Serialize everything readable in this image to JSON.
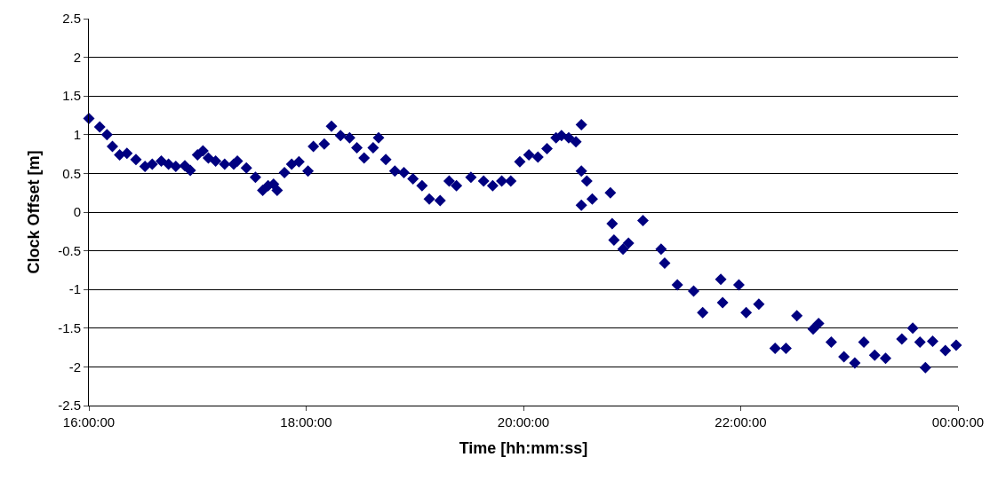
{
  "chart_data": {
    "type": "scatter",
    "xlabel": "Time [hh:mm:ss]",
    "ylabel": "Clock Offset [m]",
    "x": [
      "2000-01-01T16:00",
      "2000-01-01T16:06",
      "2000-01-01T16:10",
      "2000-01-01T16:13",
      "2000-01-01T16:17",
      "2000-01-01T16:21",
      "2000-01-01T16:26",
      "2000-01-01T16:31",
      "2000-01-01T16:35",
      "2000-01-01T16:40",
      "2000-01-01T16:44",
      "2000-01-01T16:48",
      "2000-01-01T16:53",
      "2000-01-01T16:56",
      "2000-01-01T17:00",
      "2000-01-01T17:03",
      "2000-01-01T17:06",
      "2000-01-01T17:10",
      "2000-01-01T17:15",
      "2000-01-01T17:20",
      "2000-01-01T17:22",
      "2000-01-01T17:27",
      "2000-01-01T17:32",
      "2000-01-01T17:36",
      "2000-01-01T17:39",
      "2000-01-01T17:42",
      "2000-01-01T17:44",
      "2000-01-01T17:48",
      "2000-01-01T17:52",
      "2000-01-01T17:56",
      "2000-01-01T18:01",
      "2000-01-01T18:04",
      "2000-01-01T18:10",
      "2000-01-01T18:14",
      "2000-01-01T18:19",
      "2000-01-01T18:24",
      "2000-01-01T18:28",
      "2000-01-01T18:32",
      "2000-01-01T18:37",
      "2000-01-01T18:40",
      "2000-01-01T18:44",
      "2000-01-01T18:49",
      "2000-01-01T18:54",
      "2000-01-01T18:59",
      "2000-01-01T19:04",
      "2000-01-01T19:08",
      "2000-01-01T19:14",
      "2000-01-01T19:19",
      "2000-01-01T19:23",
      "2000-01-01T19:31",
      "2000-01-01T19:38",
      "2000-01-01T19:43",
      "2000-01-01T19:48",
      "2000-01-01T19:53",
      "2000-01-01T19:58",
      "2000-01-01T20:03",
      "2000-01-01T20:08",
      "2000-01-01T20:13",
      "2000-01-01T20:18",
      "2000-01-01T20:21",
      "2000-01-01T20:25",
      "2000-01-01T20:29",
      "2000-01-01T20:32",
      "2000-01-01T20:32",
      "2000-01-01T20:32",
      "2000-01-01T20:35",
      "2000-01-01T20:38",
      "2000-01-01T20:48",
      "2000-01-01T20:49",
      "2000-01-01T20:50",
      "2000-01-01T20:55",
      "2000-01-01T20:58",
      "2000-01-01T21:06",
      "2000-01-01T21:16",
      "2000-01-01T21:18",
      "2000-01-01T21:25",
      "2000-01-01T21:34",
      "2000-01-01T21:39",
      "2000-01-01T21:49",
      "2000-01-01T21:50",
      "2000-01-01T21:59",
      "2000-01-01T22:03",
      "2000-01-01T22:10",
      "2000-01-01T22:19",
      "2000-01-01T22:25",
      "2000-01-01T22:31",
      "2000-01-01T22:40",
      "2000-01-01T22:43",
      "2000-01-01T22:50",
      "2000-01-01T22:57",
      "2000-01-01T23:03",
      "2000-01-01T23:08",
      "2000-01-01T23:14",
      "2000-01-01T23:20",
      "2000-01-01T23:29",
      "2000-01-01T23:35",
      "2000-01-01T23:39",
      "2000-01-01T23:42",
      "2000-01-01T23:46",
      "2000-01-01T23:53",
      "2000-01-01T23:59"
    ],
    "values": [
      1.21,
      1.1,
      1.0,
      0.85,
      0.74,
      0.76,
      0.68,
      0.59,
      0.62,
      0.66,
      0.62,
      0.59,
      0.6,
      0.54,
      0.74,
      0.79,
      0.7,
      0.66,
      0.62,
      0.62,
      0.66,
      0.57,
      0.45,
      0.28,
      0.34,
      0.36,
      0.28,
      0.51,
      0.62,
      0.65,
      0.53,
      0.85,
      0.88,
      1.11,
      0.99,
      0.96,
      0.83,
      0.7,
      0.83,
      0.96,
      0.68,
      0.53,
      0.51,
      0.43,
      0.34,
      0.17,
      0.15,
      0.4,
      0.34,
      0.45,
      0.4,
      0.34,
      0.4,
      0.4,
      0.65,
      0.74,
      0.71,
      0.82,
      0.96,
      0.99,
      0.96,
      0.91,
      1.13,
      0.53,
      0.09,
      0.4,
      0.17,
      0.25,
      -0.15,
      -0.36,
      -0.48,
      -0.4,
      -0.11,
      -0.48,
      -0.66,
      -0.94,
      -1.02,
      -1.3,
      -0.87,
      -1.17,
      -0.94,
      -1.3,
      -1.19,
      -1.76,
      -1.76,
      -1.34,
      -1.51,
      -1.44,
      -1.68,
      -1.87,
      -1.95,
      -1.68,
      -1.85,
      -1.89,
      -1.64,
      -1.5,
      -1.68,
      -2.01,
      -1.67,
      -1.79,
      -1.72
    ],
    "color": "#000080",
    "marker": "diamond",
    "xlim": [
      "2000-01-01T16:00",
      "2000-01-02T00:00"
    ],
    "xticks": [
      {
        "value": "2000-01-01T16:00",
        "label": "16:00:00"
      },
      {
        "value": "2000-01-01T18:00",
        "label": "18:00:00"
      },
      {
        "value": "2000-01-01T20:00",
        "label": "20:00:00"
      },
      {
        "value": "2000-01-01T22:00",
        "label": "22:00:00"
      },
      {
        "value": "2000-01-02T00:00",
        "label": "00:00:00"
      }
    ],
    "ylim": [
      -2.5,
      2.5
    ],
    "yticks": [
      -2.5,
      -2,
      -1.5,
      -1,
      -0.5,
      0,
      0.5,
      1,
      1.5,
      2,
      2.5
    ],
    "grid": "y"
  }
}
